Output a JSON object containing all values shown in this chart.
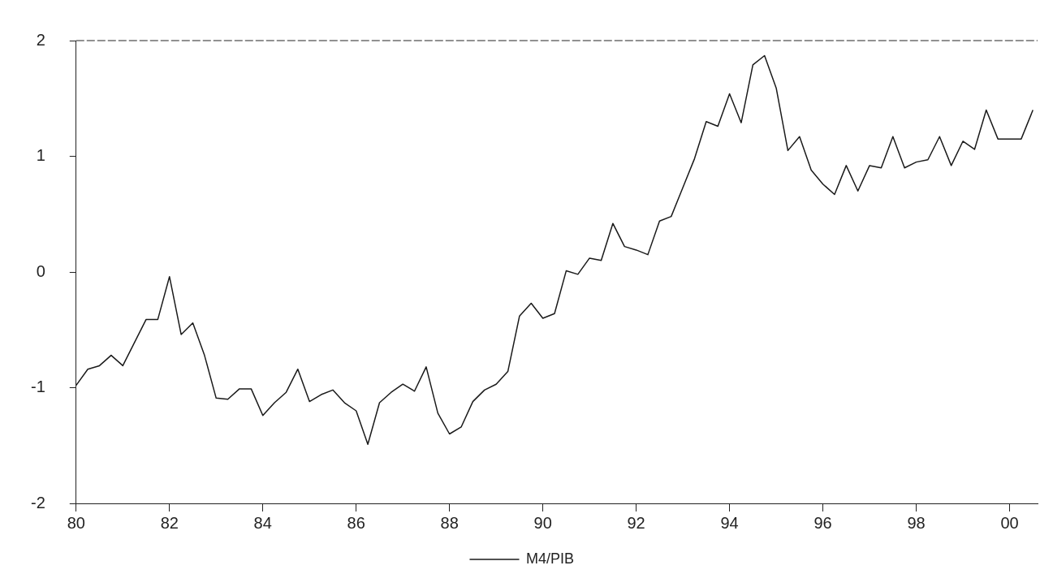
{
  "chart_data": {
    "type": "line",
    "x": [
      1980,
      1980.25,
      1980.5,
      1980.75,
      1981,
      1981.25,
      1981.5,
      1981.75,
      1982,
      1982.25,
      1982.5,
      1982.75,
      1983,
      1983.25,
      1983.5,
      1983.75,
      1984,
      1984.25,
      1984.5,
      1984.75,
      1985,
      1985.25,
      1985.5,
      1985.75,
      1986,
      1986.25,
      1986.5,
      1986.75,
      1987,
      1987.25,
      1987.5,
      1987.75,
      1988,
      1988.25,
      1988.5,
      1988.75,
      1989,
      1989.25,
      1989.5,
      1989.75,
      1990,
      1990.25,
      1990.5,
      1990.75,
      1991,
      1991.25,
      1991.5,
      1991.75,
      1992,
      1992.25,
      1992.5,
      1992.75,
      1993,
      1993.25,
      1993.5,
      1993.75,
      1994,
      1994.25,
      1994.5,
      1994.75,
      1995,
      1995.25,
      1995.5,
      1995.75,
      1996,
      1996.25,
      1996.5,
      1996.75,
      1997,
      1997.25,
      1997.5,
      1997.75,
      1998,
      1998.25,
      1998.5,
      1998.75,
      1999,
      1999.25,
      1999.5,
      1999.75,
      2000,
      2000.25,
      2000.5
    ],
    "series": [
      {
        "name": "M4/PIB",
        "color": "#1a1a1a",
        "values": [
          -0.98,
          -0.84,
          -0.81,
          -0.72,
          -0.81,
          -0.61,
          -0.41,
          -0.41,
          -0.04,
          -0.54,
          -0.44,
          -0.72,
          -1.09,
          -1.1,
          -1.01,
          -1.01,
          -1.24,
          -1.13,
          -1.04,
          -0.84,
          -1.12,
          -1.06,
          -1.02,
          -1.13,
          -1.2,
          -1.49,
          -1.13,
          -1.04,
          -0.97,
          -1.03,
          -0.82,
          -1.22,
          -1.4,
          -1.34,
          -1.12,
          -1.02,
          -0.97,
          -0.86,
          -0.38,
          -0.27,
          -0.4,
          -0.36,
          0.01,
          -0.02,
          0.12,
          0.1,
          0.42,
          0.22,
          0.19,
          0.15,
          0.44,
          0.48,
          0.73,
          0.98,
          1.3,
          1.26,
          1.54,
          1.29,
          1.79,
          1.87,
          1.59,
          1.05,
          1.17,
          0.88,
          0.76,
          0.67,
          0.92,
          0.7,
          0.92,
          0.9,
          1.17,
          0.9,
          0.95,
          0.97,
          1.17,
          0.92,
          1.13,
          1.06,
          1.4,
          1.15,
          1.15,
          1.15,
          1.4
        ]
      }
    ],
    "xlim": [
      1980,
      2000.6
    ],
    "xticks": [
      {
        "value": 1980,
        "label": "80"
      },
      {
        "value": 1982,
        "label": "82"
      },
      {
        "value": 1984,
        "label": "84"
      },
      {
        "value": 1986,
        "label": "86"
      },
      {
        "value": 1988,
        "label": "88"
      },
      {
        "value": 1990,
        "label": "90"
      },
      {
        "value": 1992,
        "label": "92"
      },
      {
        "value": 1994,
        "label": "94"
      },
      {
        "value": 1996,
        "label": "96"
      },
      {
        "value": 1998,
        "label": "98"
      },
      {
        "value": 2000,
        "label": "00"
      }
    ],
    "ylim": [
      -2,
      2
    ],
    "yticks": [
      -2,
      -1,
      0,
      1,
      2
    ],
    "grid": false,
    "legend": "bottom",
    "marker": "none",
    "line_style": "solid"
  }
}
